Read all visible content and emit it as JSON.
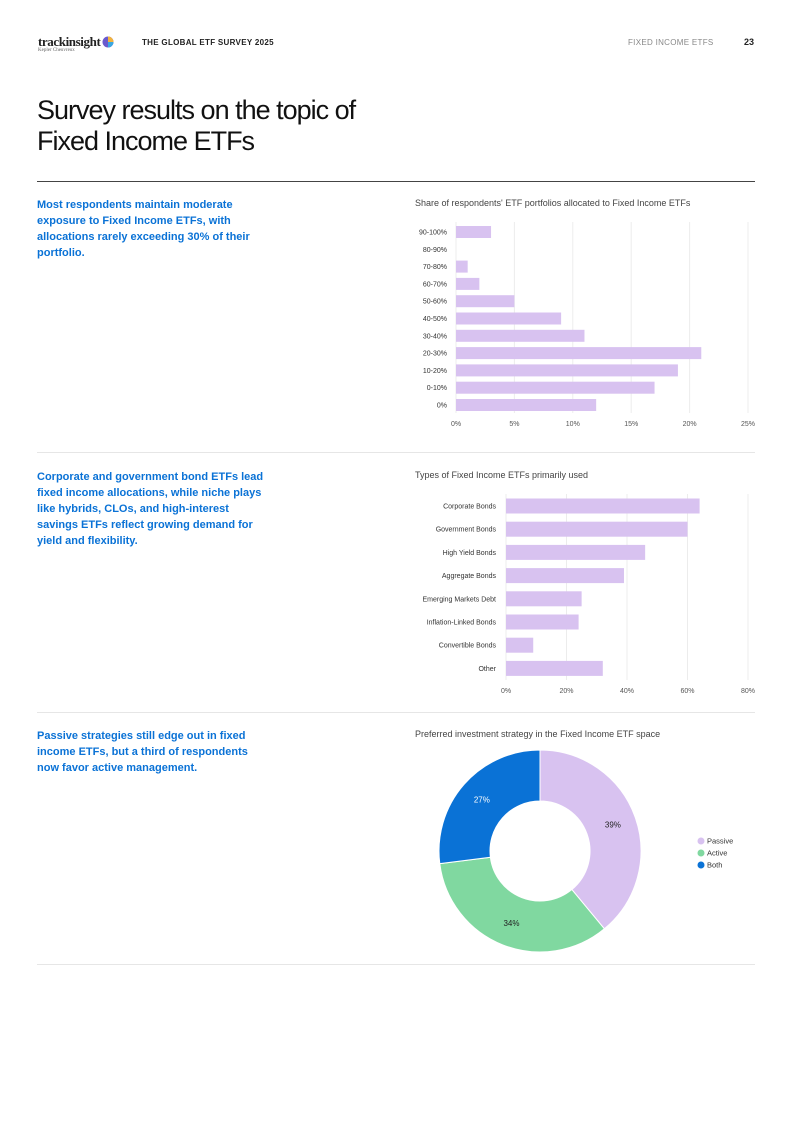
{
  "header": {
    "logo_text": "trackinsight",
    "logo_sub": "Kepler Cheuvreux",
    "survey_title": "THE GLOBAL ETF SURVEY 2025",
    "section_title": "FIXED INCOME ETFS",
    "page_number": "23"
  },
  "page_title_line1": "Survey results on the topic of",
  "page_title_line2": "Fixed Income ETFs",
  "colors": {
    "insight_blue": "#0a72d6",
    "bar_lilac": "#d8c2f0",
    "passive": "#d8c2f0",
    "active": "#80d8a0",
    "both": "#0a72d6"
  },
  "sections": [
    {
      "insight": "Most respondents maintain moderate exposure to Fixed Income ETFs, with allocations rarely exceeding 30% of their portfolio."
    },
    {
      "insight": "Corporate and government bond ETFs lead fixed income allocations, while niche plays like hybrids, CLOs, and high-interest savings ETFs reflect growing demand for yield and flexibility."
    },
    {
      "insight": "Passive strategies still edge out in fixed income ETFs, but a third of respondents now favor active management."
    }
  ],
  "chart_data": [
    {
      "type": "bar",
      "orientation": "horizontal",
      "title": "Share of respondents' ETF portfolios allocated to Fixed Income ETFs",
      "categories": [
        "90-100%",
        "80-90%",
        "70-80%",
        "60-70%",
        "50-60%",
        "40-50%",
        "30-40%",
        "20-30%",
        "10-20%",
        "0-10%",
        "0%"
      ],
      "values": [
        3,
        0,
        1,
        2,
        5,
        9,
        11,
        21,
        19,
        17,
        12
      ],
      "xlim": [
        0,
        25
      ],
      "xticks": [
        0,
        5,
        10,
        15,
        20,
        25
      ],
      "xtick_labels": [
        "0%",
        "5%",
        "10%",
        "15%",
        "20%",
        "25%"
      ],
      "grid": true
    },
    {
      "type": "bar",
      "orientation": "horizontal",
      "title": "Types of Fixed Income ETFs primarily used",
      "categories": [
        "Corporate Bonds",
        "Government Bonds",
        "High Yield Bonds",
        "Aggregate Bonds",
        "Emerging Markets Debt",
        "Inflation-Linked Bonds",
        "Convertible Bonds",
        "Other"
      ],
      "values": [
        64,
        60,
        46,
        39,
        25,
        24,
        9,
        32
      ],
      "xlim": [
        0,
        80
      ],
      "xticks": [
        0,
        20,
        40,
        60,
        80
      ],
      "xtick_labels": [
        "0%",
        "20%",
        "40%",
        "60%",
        "80%"
      ],
      "grid": true
    },
    {
      "type": "pie",
      "donut": true,
      "title": "Preferred investment strategy in the Fixed Income ETF space",
      "labels": [
        "Passive",
        "Active",
        "Both"
      ],
      "values": [
        39,
        34,
        27
      ],
      "value_labels": [
        "39%",
        "34%",
        "27%"
      ],
      "colors": [
        "#d8c2f0",
        "#80d8a0",
        "#0a72d6"
      ],
      "legend": "right"
    }
  ]
}
